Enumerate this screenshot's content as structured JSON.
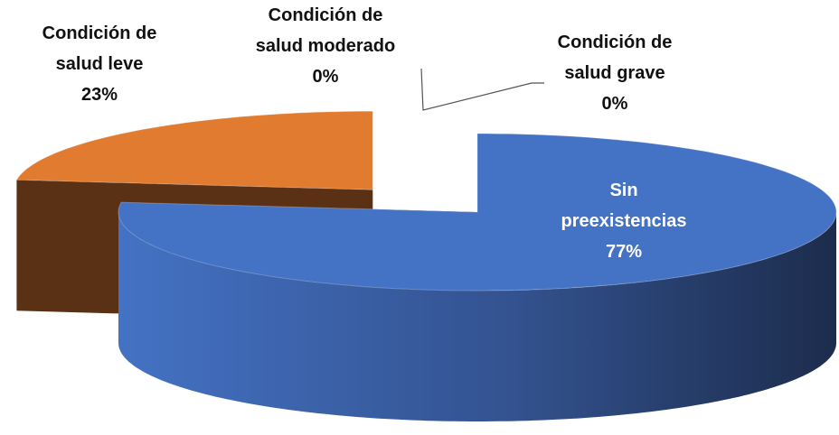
{
  "chart_data": {
    "type": "pie",
    "categories": [
      "Sin preexistencias",
      "Condición de salud leve",
      "Condición de salud moderado",
      "Condición de salud grave"
    ],
    "values": [
      77,
      23,
      0,
      0
    ],
    "value_labels": [
      "77%",
      "23%",
      "0%",
      "0%"
    ],
    "colors": [
      "#4472c4",
      "#e07b30",
      "#a5a5a5",
      "#ffc000"
    ]
  }
}
